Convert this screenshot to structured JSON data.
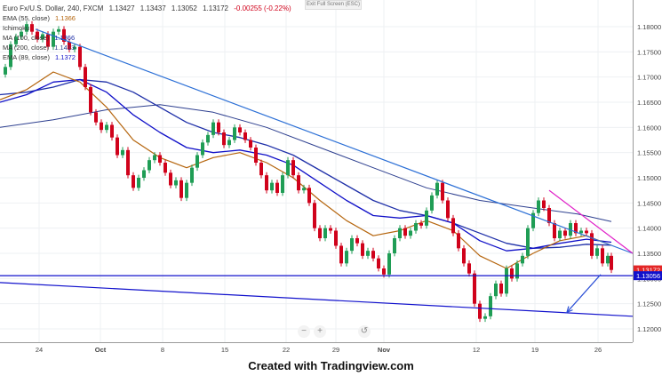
{
  "header": {
    "symbol_title": "Euro Fx/U.S. Dollar, 240, FXCM",
    "open": "1.13427",
    "high": "1.13437",
    "low": "1.13052",
    "close": "1.13172",
    "change": "-0.00255 (-0.22%)",
    "banner": "Exit Full Screen (ESC)"
  },
  "indicators": [
    {
      "label": "EMA (55, close)",
      "value": "1.1366",
      "color": "#b5650d"
    },
    {
      "label": "Ichimoku",
      "value": "",
      "color": "#aaaaaa"
    },
    {
      "label": "MA (100, close)",
      "value": "1.1366",
      "color": "#1e2fa8"
    },
    {
      "label": "MA (200, close)",
      "value": "1.1413",
      "color": "#2d3f8f"
    },
    {
      "label": "EMA (89, close)",
      "value": "1.1372",
      "color": "#1010c8"
    }
  ],
  "price_tags": [
    {
      "value": "1.13172",
      "price": 1.13172,
      "color": "#e32626"
    },
    {
      "value": "1.13056",
      "price": 1.13056,
      "color": "#1111cc"
    }
  ],
  "controls": [
    "−",
    "+",
    "↺"
  ],
  "footer": "Created with Tradingview.com",
  "chart_data": {
    "type": "candlestick",
    "instrument": "EUR/USD",
    "timeframe": "240",
    "y_ticks": [
      "1.18000",
      "1.17500",
      "1.17000",
      "1.16500",
      "1.16000",
      "1.15500",
      "1.15000",
      "1.14500",
      "1.14000",
      "1.13500",
      "1.13000",
      "1.12500",
      "1.12000"
    ],
    "ylim": [
      1.1195,
      1.1865
    ],
    "x_ticks": [
      "24",
      "Oct",
      "8",
      "15",
      "22",
      "29",
      "Nov",
      "12",
      "19",
      "26"
    ],
    "price_path": [
      [
        0,
        1.1705
      ],
      [
        6,
        1.172
      ],
      [
        12,
        1.1765
      ],
      [
        18,
        1.178
      ],
      [
        24,
        1.179
      ],
      [
        30,
        1.1805
      ],
      [
        36,
        1.179
      ],
      [
        42,
        1.1775
      ],
      [
        48,
        1.1785
      ],
      [
        54,
        1.176
      ],
      [
        60,
        1.179
      ],
      [
        66,
        1.1795
      ],
      [
        72,
        1.177
      ],
      [
        78,
        1.1755
      ],
      [
        84,
        1.176
      ],
      [
        90,
        1.172
      ],
      [
        96,
        1.168
      ],
      [
        102,
        1.163
      ],
      [
        108,
        1.161
      ],
      [
        114,
        1.1595
      ],
      [
        120,
        1.1605
      ],
      [
        126,
        1.158
      ],
      [
        132,
        1.1545
      ],
      [
        138,
        1.1555
      ],
      [
        144,
        1.1505
      ],
      [
        150,
        1.148
      ],
      [
        156,
        1.15
      ],
      [
        162,
        1.1515
      ],
      [
        168,
        1.1535
      ],
      [
        174,
        1.1545
      ],
      [
        180,
        1.153
      ],
      [
        186,
        1.151
      ],
      [
        192,
        1.1485
      ],
      [
        198,
        1.1495
      ],
      [
        204,
        1.146
      ],
      [
        210,
        1.149
      ],
      [
        216,
        1.152
      ],
      [
        222,
        1.1545
      ],
      [
        228,
        1.157
      ],
      [
        234,
        1.1585
      ],
      [
        240,
        1.161
      ],
      [
        246,
        1.159
      ],
      [
        252,
        1.1565
      ],
      [
        258,
        1.1575
      ],
      [
        264,
        1.16
      ],
      [
        270,
        1.159
      ],
      [
        276,
        1.1575
      ],
      [
        282,
        1.156
      ],
      [
        288,
        1.153
      ],
      [
        294,
        1.1505
      ],
      [
        300,
        1.1475
      ],
      [
        306,
        1.149
      ],
      [
        312,
        1.147
      ],
      [
        318,
        1.1505
      ],
      [
        324,
        1.1535
      ],
      [
        330,
        1.1505
      ],
      [
        336,
        1.1475
      ],
      [
        342,
        1.148
      ],
      [
        348,
        1.145
      ],
      [
        354,
        1.14
      ],
      [
        360,
        1.138
      ],
      [
        366,
        1.14
      ],
      [
        372,
        1.1395
      ],
      [
        378,
        1.1365
      ],
      [
        384,
        1.133
      ],
      [
        390,
        1.1355
      ],
      [
        396,
        1.138
      ],
      [
        402,
        1.137
      ],
      [
        408,
        1.1345
      ],
      [
        414,
        1.1355
      ],
      [
        420,
        1.134
      ],
      [
        426,
        1.132
      ],
      [
        432,
        1.1308
      ],
      [
        438,
        1.135
      ],
      [
        444,
        1.138
      ],
      [
        450,
        1.14
      ],
      [
        456,
        1.1385
      ],
      [
        462,
        1.1395
      ],
      [
        468,
        1.141
      ],
      [
        474,
        1.1405
      ],
      [
        480,
        1.1435
      ],
      [
        486,
        1.1465
      ],
      [
        492,
        1.149
      ],
      [
        498,
        1.1455
      ],
      [
        504,
        1.142
      ],
      [
        510,
        1.139
      ],
      [
        516,
        1.136
      ],
      [
        522,
        1.133
      ],
      [
        528,
        1.131
      ],
      [
        534,
        1.125
      ],
      [
        540,
        1.122
      ],
      [
        546,
        1.1225
      ],
      [
        552,
        1.1265
      ],
      [
        558,
        1.129
      ],
      [
        564,
        1.127
      ],
      [
        570,
        1.132
      ],
      [
        576,
        1.13
      ],
      [
        582,
        1.133
      ],
      [
        588,
        1.1345
      ],
      [
        594,
        1.14
      ],
      [
        600,
        1.143
      ],
      [
        606,
        1.1455
      ],
      [
        612,
        1.144
      ],
      [
        618,
        1.141
      ],
      [
        624,
        1.138
      ],
      [
        630,
        1.1395
      ],
      [
        636,
        1.1385
      ],
      [
        642,
        1.141
      ],
      [
        648,
        1.139
      ],
      [
        654,
        1.1395
      ],
      [
        660,
        1.139
      ],
      [
        666,
        1.1345
      ],
      [
        672,
        1.136
      ],
      [
        678,
        1.133
      ],
      [
        684,
        1.1345
      ],
      [
        688,
        1.1317
      ]
    ],
    "ema55": [
      [
        0,
        1.1655
      ],
      [
        30,
        1.1675
      ],
      [
        60,
        1.171
      ],
      [
        90,
        1.169
      ],
      [
        120,
        1.164
      ],
      [
        150,
        1.1575
      ],
      [
        180,
        1.154
      ],
      [
        210,
        1.152
      ],
      [
        240,
        1.154
      ],
      [
        270,
        1.155
      ],
      [
        300,
        1.153
      ],
      [
        330,
        1.15
      ],
      [
        360,
        1.1455
      ],
      [
        390,
        1.1415
      ],
      [
        420,
        1.1385
      ],
      [
        450,
        1.1395
      ],
      [
        480,
        1.1415
      ],
      [
        510,
        1.1395
      ],
      [
        540,
        1.1345
      ],
      [
        570,
        1.132
      ],
      [
        600,
        1.135
      ],
      [
        630,
        1.1375
      ],
      [
        660,
        1.1385
      ],
      [
        688,
        1.1366
      ]
    ],
    "ema89": [
      [
        0,
        1.165
      ],
      [
        30,
        1.1665
      ],
      [
        60,
        1.169
      ],
      [
        90,
        1.1695
      ],
      [
        120,
        1.167
      ],
      [
        150,
        1.1625
      ],
      [
        180,
        1.159
      ],
      [
        210,
        1.156
      ],
      [
        240,
        1.155
      ],
      [
        270,
        1.1555
      ],
      [
        300,
        1.1545
      ],
      [
        330,
        1.1525
      ],
      [
        360,
        1.149
      ],
      [
        390,
        1.1455
      ],
      [
        420,
        1.1425
      ],
      [
        450,
        1.142
      ],
      [
        480,
        1.1425
      ],
      [
        510,
        1.141
      ],
      [
        540,
        1.1375
      ],
      [
        570,
        1.1355
      ],
      [
        600,
        1.136
      ],
      [
        630,
        1.137
      ],
      [
        660,
        1.1378
      ],
      [
        688,
        1.1372
      ]
    ],
    "ma100": [
      [
        0,
        1.1665
      ],
      [
        30,
        1.167
      ],
      [
        60,
        1.168
      ],
      [
        90,
        1.1695
      ],
      [
        120,
        1.169
      ],
      [
        150,
        1.167
      ],
      [
        180,
        1.164
      ],
      [
        210,
        1.161
      ],
      [
        240,
        1.159
      ],
      [
        270,
        1.158
      ],
      [
        300,
        1.1565
      ],
      [
        330,
        1.1545
      ],
      [
        360,
        1.1515
      ],
      [
        390,
        1.1485
      ],
      [
        420,
        1.1455
      ],
      [
        450,
        1.1435
      ],
      [
        480,
        1.1425
      ],
      [
        510,
        1.141
      ],
      [
        540,
        1.139
      ],
      [
        570,
        1.137
      ],
      [
        600,
        1.136
      ],
      [
        630,
        1.1362
      ],
      [
        660,
        1.1368
      ],
      [
        688,
        1.1366
      ]
    ],
    "ma200": [
      [
        0,
        1.16
      ],
      [
        60,
        1.1615
      ],
      [
        120,
        1.1635
      ],
      [
        180,
        1.1645
      ],
      [
        240,
        1.163
      ],
      [
        300,
        1.16
      ],
      [
        360,
        1.156
      ],
      [
        420,
        1.152
      ],
      [
        480,
        1.148
      ],
      [
        540,
        1.1455
      ],
      [
        600,
        1.144
      ],
      [
        650,
        1.1428
      ],
      [
        688,
        1.1413
      ]
    ],
    "trendlines": [
      {
        "name": "upper-downtrend",
        "color": "#2b6fd6",
        "from": [
          40,
          1.1795
        ],
        "to": [
          712,
          1.135
        ]
      },
      {
        "name": "short-downtrend",
        "color": "#e020c8",
        "from": [
          618,
          1.1475
        ],
        "to": [
          712,
          1.135
        ]
      },
      {
        "name": "horizontal-support",
        "color": "#1111cc",
        "from": [
          0,
          1.13056
        ],
        "to": [
          712,
          1.13056
        ]
      },
      {
        "name": "lower-channel",
        "color": "#1111cc",
        "from": [
          0,
          1.1292
        ],
        "to": [
          712,
          1.1225
        ]
      },
      {
        "name": "target-arrow",
        "color": "#2b4fd6",
        "from": [
          676,
          1.1308
        ],
        "to": [
          638,
          1.1233
        ]
      }
    ]
  }
}
